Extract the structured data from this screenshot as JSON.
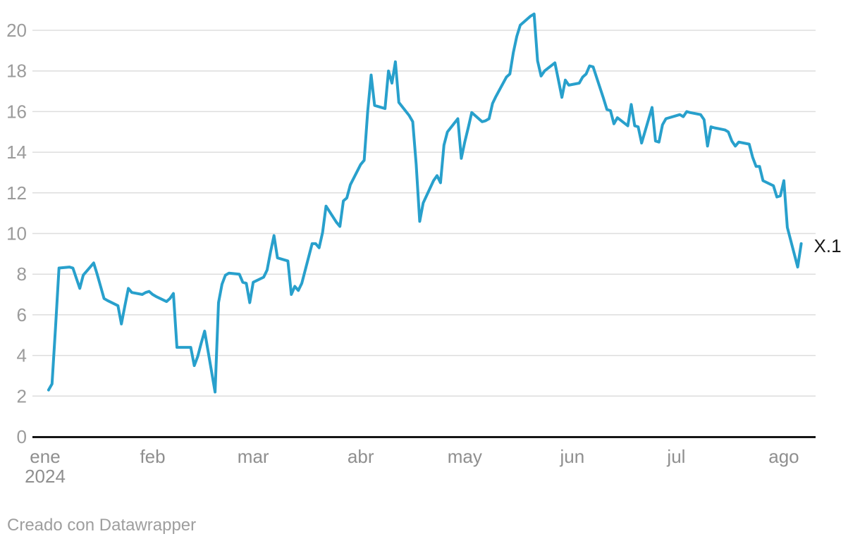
{
  "chart_data": {
    "type": "line",
    "title": "",
    "grid": "horizontal",
    "y_axis": {
      "min": 0,
      "max": 20,
      "tick_step": 2,
      "tick_labels": [
        "0",
        "2",
        "4",
        "6",
        "8",
        "10",
        "12",
        "14",
        "16",
        "18",
        "20"
      ]
    },
    "x_axis": {
      "start_date": "2024-01-01",
      "end_date": "2024-08-06",
      "months": [
        {
          "label": "ene",
          "date": "2024-01-01",
          "year_label": "2024"
        },
        {
          "label": "feb",
          "date": "2024-02-01"
        },
        {
          "label": "mar",
          "date": "2024-03-01"
        },
        {
          "label": "abr",
          "date": "2024-04-01"
        },
        {
          "label": "may",
          "date": "2024-05-01"
        },
        {
          "label": "jun",
          "date": "2024-06-01"
        },
        {
          "label": "jul",
          "date": "2024-07-01"
        },
        {
          "label": "ago",
          "date": "2024-08-01"
        }
      ]
    },
    "series": [
      {
        "name": "X.1",
        "end_label": "X.1",
        "points": [
          [
            "2024-01-02",
            2.3
          ],
          [
            "2024-01-03",
            2.6
          ],
          [
            "2024-01-04",
            5.4
          ],
          [
            "2024-01-05",
            8.3
          ],
          [
            "2024-01-08",
            8.35
          ],
          [
            "2024-01-09",
            8.3
          ],
          [
            "2024-01-10",
            7.8
          ],
          [
            "2024-01-11",
            7.3
          ],
          [
            "2024-01-12",
            7.95
          ],
          [
            "2024-01-15",
            8.55
          ],
          [
            "2024-01-16",
            8.0
          ],
          [
            "2024-01-17",
            7.4
          ],
          [
            "2024-01-18",
            6.8
          ],
          [
            "2024-01-19",
            6.7
          ],
          [
            "2024-01-22",
            6.45
          ],
          [
            "2024-01-23",
            5.55
          ],
          [
            "2024-01-24",
            6.45
          ],
          [
            "2024-01-25",
            7.3
          ],
          [
            "2024-01-26",
            7.1
          ],
          [
            "2024-01-29",
            7.0
          ],
          [
            "2024-01-30",
            7.1
          ],
          [
            "2024-01-31",
            7.15
          ],
          [
            "2024-02-01",
            7.0
          ],
          [
            "2024-02-02",
            6.9
          ],
          [
            "2024-02-05",
            6.65
          ],
          [
            "2024-02-06",
            6.8
          ],
          [
            "2024-02-07",
            7.05
          ],
          [
            "2024-02-08",
            4.4
          ],
          [
            "2024-02-09",
            4.4
          ],
          [
            "2024-02-12",
            4.4
          ],
          [
            "2024-02-13",
            3.5
          ],
          [
            "2024-02-14",
            3.95
          ],
          [
            "2024-02-15",
            4.6
          ],
          [
            "2024-02-16",
            5.2
          ],
          [
            "2024-02-19",
            2.2
          ],
          [
            "2024-02-20",
            6.6
          ],
          [
            "2024-02-21",
            7.5
          ],
          [
            "2024-02-22",
            7.95
          ],
          [
            "2024-02-23",
            8.05
          ],
          [
            "2024-02-26",
            8.0
          ],
          [
            "2024-02-27",
            7.6
          ],
          [
            "2024-02-28",
            7.55
          ],
          [
            "2024-02-29",
            6.6
          ],
          [
            "2024-03-01",
            7.6
          ],
          [
            "2024-03-04",
            7.85
          ],
          [
            "2024-03-05",
            8.2
          ],
          [
            "2024-03-06",
            9.1
          ],
          [
            "2024-03-07",
            9.9
          ],
          [
            "2024-03-08",
            8.8
          ],
          [
            "2024-03-11",
            8.65
          ],
          [
            "2024-03-12",
            7.0
          ],
          [
            "2024-03-13",
            7.4
          ],
          [
            "2024-03-14",
            7.2
          ],
          [
            "2024-03-15",
            7.55
          ],
          [
            "2024-03-18",
            9.5
          ],
          [
            "2024-03-19",
            9.5
          ],
          [
            "2024-03-20",
            9.3
          ],
          [
            "2024-03-21",
            10.05
          ],
          [
            "2024-03-22",
            11.35
          ],
          [
            "2024-03-25",
            10.55
          ],
          [
            "2024-03-26",
            10.35
          ],
          [
            "2024-03-27",
            11.6
          ],
          [
            "2024-03-28",
            11.75
          ],
          [
            "2024-03-29",
            12.4
          ],
          [
            "2024-04-01",
            13.4
          ],
          [
            "2024-04-02",
            13.6
          ],
          [
            "2024-04-03",
            16.0
          ],
          [
            "2024-04-04",
            17.8
          ],
          [
            "2024-04-05",
            16.3
          ],
          [
            "2024-04-08",
            16.15
          ],
          [
            "2024-04-09",
            18.0
          ],
          [
            "2024-04-10",
            17.4
          ],
          [
            "2024-04-11",
            18.45
          ],
          [
            "2024-04-12",
            16.45
          ],
          [
            "2024-04-15",
            15.8
          ],
          [
            "2024-04-16",
            15.5
          ],
          [
            "2024-04-17",
            13.4
          ],
          [
            "2024-04-18",
            10.6
          ],
          [
            "2024-04-19",
            11.5
          ],
          [
            "2024-04-22",
            12.6
          ],
          [
            "2024-04-23",
            12.85
          ],
          [
            "2024-04-24",
            12.5
          ],
          [
            "2024-04-25",
            14.35
          ],
          [
            "2024-04-26",
            15.0
          ],
          [
            "2024-04-29",
            15.65
          ],
          [
            "2024-04-30",
            13.7
          ],
          [
            "2024-05-01",
            14.5
          ],
          [
            "2024-05-02",
            15.2
          ],
          [
            "2024-05-03",
            15.95
          ],
          [
            "2024-05-06",
            15.5
          ],
          [
            "2024-05-07",
            15.55
          ],
          [
            "2024-05-08",
            15.65
          ],
          [
            "2024-05-09",
            16.4
          ],
          [
            "2024-05-10",
            16.75
          ],
          [
            "2024-05-13",
            17.7
          ],
          [
            "2024-05-14",
            17.85
          ],
          [
            "2024-05-15",
            18.9
          ],
          [
            "2024-05-16",
            19.7
          ],
          [
            "2024-05-17",
            20.25
          ],
          [
            "2024-05-20",
            20.7
          ],
          [
            "2024-05-21",
            20.8
          ],
          [
            "2024-05-22",
            18.5
          ],
          [
            "2024-05-23",
            17.75
          ],
          [
            "2024-05-24",
            18.0
          ],
          [
            "2024-05-27",
            18.4
          ],
          [
            "2024-05-28",
            17.55
          ],
          [
            "2024-05-29",
            16.7
          ],
          [
            "2024-05-30",
            17.55
          ],
          [
            "2024-05-31",
            17.3
          ],
          [
            "2024-06-03",
            17.4
          ],
          [
            "2024-06-04",
            17.7
          ],
          [
            "2024-06-05",
            17.85
          ],
          [
            "2024-06-06",
            18.25
          ],
          [
            "2024-06-07",
            18.2
          ],
          [
            "2024-06-10",
            16.65
          ],
          [
            "2024-06-11",
            16.1
          ],
          [
            "2024-06-12",
            16.05
          ],
          [
            "2024-06-13",
            15.4
          ],
          [
            "2024-06-14",
            15.7
          ],
          [
            "2024-06-17",
            15.3
          ],
          [
            "2024-06-18",
            16.35
          ],
          [
            "2024-06-19",
            15.3
          ],
          [
            "2024-06-20",
            15.25
          ],
          [
            "2024-06-21",
            14.45
          ],
          [
            "2024-06-24",
            16.2
          ],
          [
            "2024-06-25",
            14.55
          ],
          [
            "2024-06-26",
            14.5
          ],
          [
            "2024-06-27",
            15.35
          ],
          [
            "2024-06-28",
            15.65
          ],
          [
            "2024-07-01",
            15.8
          ],
          [
            "2024-07-02",
            15.85
          ],
          [
            "2024-07-03",
            15.75
          ],
          [
            "2024-07-04",
            16.0
          ],
          [
            "2024-07-05",
            15.95
          ],
          [
            "2024-07-08",
            15.85
          ],
          [
            "2024-07-09",
            15.6
          ],
          [
            "2024-07-10",
            14.3
          ],
          [
            "2024-07-11",
            15.25
          ],
          [
            "2024-07-12",
            15.2
          ],
          [
            "2024-07-15",
            15.1
          ],
          [
            "2024-07-16",
            15.0
          ],
          [
            "2024-07-17",
            14.55
          ],
          [
            "2024-07-18",
            14.3
          ],
          [
            "2024-07-19",
            14.5
          ],
          [
            "2024-07-22",
            14.4
          ],
          [
            "2024-07-23",
            13.75
          ],
          [
            "2024-07-24",
            13.3
          ],
          [
            "2024-07-25",
            13.3
          ],
          [
            "2024-07-26",
            12.6
          ],
          [
            "2024-07-29",
            12.35
          ],
          [
            "2024-07-30",
            11.8
          ],
          [
            "2024-07-31",
            11.85
          ],
          [
            "2024-08-01",
            12.6
          ],
          [
            "2024-08-02",
            10.3
          ],
          [
            "2024-08-05",
            8.35
          ],
          [
            "2024-08-06",
            9.5
          ]
        ]
      }
    ]
  },
  "footer": {
    "credit": "Creado con Datawrapper"
  },
  "colors": {
    "line": "#28a0cc",
    "grid": "#dddddd",
    "axis": "#151515",
    "y_label": "#9b9b9b",
    "x_label": "#8f8f8f",
    "end_label": "#1a1a1a",
    "credit": "#9e9e9e",
    "background": "#ffffff"
  }
}
